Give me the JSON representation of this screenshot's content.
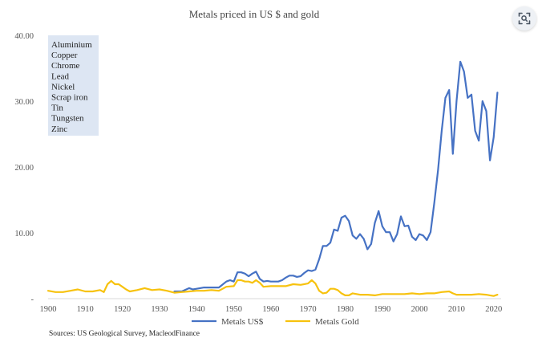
{
  "chart_data": {
    "type": "line",
    "title": "Metals priced in US $ and gold",
    "xlabel": "",
    "ylabel": "",
    "xlim": [
      1900,
      2022
    ],
    "ylim": [
      0,
      40
    ],
    "x_ticks": [
      "1900",
      "1910",
      "1920",
      "1930",
      "1940",
      "1950",
      "1960",
      "1970",
      "1980",
      "1990",
      "2000",
      "2010",
      "2020"
    ],
    "y_ticks": [
      "40.00",
      "30.00",
      "20.00",
      "10.00",
      "-"
    ],
    "grid": false,
    "legend_position": "bottom",
    "note_box": {
      "items": [
        "Aluminium",
        "Copper",
        "Chrome",
        "Lead",
        "Nickel",
        "Scrap iron",
        "Tin",
        "Tungsten",
        "Zinc"
      ],
      "color": "#dde6f3"
    },
    "source": "Sources: US Geological Survey, MacleodFinance",
    "series": [
      {
        "name": "Metals US$",
        "color": "#4672c4",
        "x": [
          1934,
          1936,
          1938,
          1939,
          1940,
          1942,
          1944,
          1946,
          1948,
          1949,
          1950,
          1951,
          1952,
          1953,
          1954,
          1955,
          1956,
          1957,
          1958,
          1959,
          1960,
          1961,
          1962,
          1963,
          1964,
          1965,
          1966,
          1967,
          1968,
          1969,
          1970,
          1971,
          1972,
          1973,
          1974,
          1975,
          1976,
          1977,
          1978,
          1979,
          1980,
          1981,
          1982,
          1983,
          1984,
          1985,
          1986,
          1987,
          1988,
          1989,
          1990,
          1991,
          1992,
          1993,
          1994,
          1995,
          1996,
          1997,
          1998,
          1999,
          2000,
          2001,
          2002,
          2003,
          2004,
          2005,
          2006,
          2007,
          2008,
          2009,
          2010,
          2011,
          2012,
          2013,
          2014,
          2015,
          2016,
          2017,
          2018,
          2019,
          2020,
          2021
        ],
        "y": [
          1.1,
          1.1,
          1.6,
          1.4,
          1.5,
          1.7,
          1.7,
          1.7,
          2.6,
          2.8,
          2.6,
          4.0,
          4.0,
          3.8,
          3.4,
          3.8,
          4.1,
          3.0,
          2.6,
          2.7,
          2.6,
          2.6,
          2.6,
          2.8,
          3.2,
          3.5,
          3.5,
          3.3,
          3.4,
          3.9,
          4.3,
          4.2,
          4.4,
          6.0,
          8.0,
          8.0,
          8.5,
          10.5,
          10.3,
          12.3,
          12.6,
          11.8,
          9.6,
          9.1,
          9.8,
          9.1,
          7.5,
          8.3,
          11.5,
          13.3,
          11.0,
          10.1,
          10.1,
          8.7,
          9.8,
          12.5,
          11.0,
          11.1,
          9.4,
          8.9,
          9.8,
          9.6,
          8.9,
          10.1,
          14.5,
          19.5,
          25.5,
          30.5,
          31.7,
          22.0,
          30.0,
          36.0,
          34.5,
          30.5,
          31.0,
          25.5,
          24.0,
          30.0,
          28.5,
          21.0,
          24.5,
          31.3
        ]
      },
      {
        "name": "Metals Gold",
        "color": "#f7c20e",
        "x": [
          1900,
          1902,
          1904,
          1906,
          1908,
          1910,
          1912,
          1914,
          1915,
          1916,
          1917,
          1918,
          1919,
          1920,
          1921,
          1922,
          1924,
          1926,
          1928,
          1930,
          1932,
          1934,
          1936,
          1938,
          1940,
          1942,
          1944,
          1946,
          1948,
          1950,
          1951,
          1952,
          1953,
          1954,
          1955,
          1956,
          1957,
          1958,
          1960,
          1962,
          1964,
          1966,
          1968,
          1970,
          1971,
          1972,
          1973,
          1974,
          1975,
          1976,
          1977,
          1978,
          1979,
          1980,
          1981,
          1982,
          1984,
          1986,
          1988,
          1990,
          1992,
          1994,
          1996,
          1998,
          2000,
          2002,
          2004,
          2006,
          2008,
          2009,
          2010,
          2012,
          2014,
          2016,
          2018,
          2019,
          2020,
          2021
        ],
        "y": [
          1.2,
          1.0,
          1.0,
          1.2,
          1.4,
          1.1,
          1.1,
          1.3,
          1.0,
          2.2,
          2.7,
          2.2,
          2.2,
          1.8,
          1.4,
          1.1,
          1.3,
          1.6,
          1.3,
          1.4,
          1.2,
          0.9,
          1.0,
          1.1,
          1.2,
          1.2,
          1.3,
          1.2,
          1.8,
          1.9,
          2.8,
          2.8,
          2.6,
          2.6,
          2.4,
          2.8,
          2.4,
          1.8,
          1.9,
          1.9,
          1.9,
          2.2,
          2.1,
          2.3,
          2.8,
          2.3,
          1.2,
          0.8,
          0.9,
          1.5,
          1.5,
          1.3,
          0.8,
          0.5,
          0.5,
          0.8,
          0.6,
          0.6,
          0.5,
          0.7,
          0.7,
          0.7,
          0.7,
          0.8,
          0.7,
          0.8,
          0.8,
          1.0,
          1.1,
          0.8,
          0.6,
          0.6,
          0.6,
          0.7,
          0.6,
          0.5,
          0.4,
          0.6
        ]
      }
    ]
  }
}
